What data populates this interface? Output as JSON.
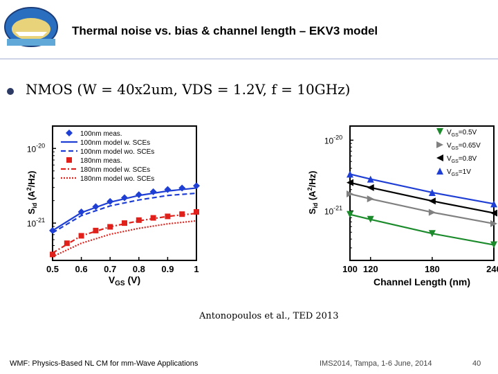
{
  "header": {
    "title": "Thermal noise vs. bias & channel length – EKV3 model",
    "logo_text": "IMS2014 - Tampa Bay, Florida"
  },
  "bullet": {
    "text": "NMOS (W = 40x2um, VDS = 1.2V, f = 10GHz)"
  },
  "citation": "Antonopoulos et al., TED 2013",
  "footer": {
    "left": "WMF: Physics-Based NL CM for mm-Wave Applications",
    "center": "IMS2014, Tampa, 1-6 June, 2014",
    "page": "40"
  },
  "colors": {
    "blue": "#1f3fd4",
    "red": "#e0201a",
    "green": "#1a8a2a",
    "gray": "#808080",
    "black": "#000000"
  },
  "chart_data": [
    {
      "type": "line",
      "xlabel": "VGS (V)",
      "ylabel": "Sid (A²/Hz)",
      "xlim": [
        0.5,
        1.0
      ],
      "ylim_log10": [
        -21.5,
        -19.7
      ],
      "log_y": true,
      "x_ticks": [
        "0.5",
        "0.6",
        "0.7",
        "0.8",
        "0.9",
        "1"
      ],
      "y_ticks": [
        "10^-20",
        "10^-21"
      ],
      "legend_position": "top",
      "series": [
        {
          "name": "100nm meas.",
          "style": "marker-diamond",
          "color": "blue",
          "x": [
            0.5,
            0.6,
            0.65,
            0.7,
            0.75,
            0.8,
            0.85,
            0.9,
            0.95,
            1.0
          ],
          "y_log10": [
            -21.1,
            -20.85,
            -20.78,
            -20.71,
            -20.66,
            -20.62,
            -20.58,
            -20.55,
            -20.53,
            -20.5
          ]
        },
        {
          "name": "100nm model w. SCEs",
          "style": "solid",
          "color": "blue",
          "x": [
            0.5,
            0.6,
            0.7,
            0.8,
            0.9,
            1.0
          ],
          "y_log10": [
            -21.1,
            -20.86,
            -20.72,
            -20.63,
            -20.57,
            -20.53
          ]
        },
        {
          "name": "100nm model wo. SCEs",
          "style": "dashed",
          "color": "blue",
          "x": [
            0.5,
            0.6,
            0.7,
            0.8,
            0.9,
            1.0
          ],
          "y_log10": [
            -21.13,
            -20.9,
            -20.77,
            -20.69,
            -20.63,
            -20.6
          ]
        },
        {
          "name": "180nm meas.",
          "style": "marker-square",
          "color": "red",
          "x": [
            0.5,
            0.55,
            0.6,
            0.65,
            0.7,
            0.75,
            0.8,
            0.85,
            0.9,
            0.95,
            1.0
          ],
          "y_log10": [
            -21.42,
            -21.27,
            -21.17,
            -21.1,
            -21.05,
            -21.0,
            -20.96,
            -20.93,
            -20.91,
            -20.88,
            -20.85
          ]
        },
        {
          "name": "180nm model w. SCEs",
          "style": "dash-dot",
          "color": "red",
          "x": [
            0.5,
            0.6,
            0.7,
            0.8,
            0.9,
            1.0
          ],
          "y_log10": [
            -21.4,
            -21.17,
            -21.05,
            -20.97,
            -20.91,
            -20.87
          ]
        },
        {
          "name": "180nm model wo. SCEs",
          "style": "dotted",
          "color": "red",
          "x": [
            0.5,
            0.6,
            0.7,
            0.8,
            0.9,
            1.0
          ],
          "y_log10": [
            -21.45,
            -21.27,
            -21.15,
            -21.07,
            -21.01,
            -20.97
          ]
        }
      ]
    },
    {
      "type": "line",
      "xlabel": "Channel Length (nm)",
      "ylabel": "Sid (A²/Hz)",
      "xlim": [
        100,
        240
      ],
      "ylim_log10": [
        -21.7,
        -19.8
      ],
      "log_y": true,
      "x_ticks": [
        "100",
        "120",
        "180",
        "240"
      ],
      "y_ticks": [
        "10^-20",
        "10^-21"
      ],
      "legend_position": "top-right",
      "series": [
        {
          "name": "VGS=0.5V",
          "marker": "triangle-down",
          "color": "green",
          "x": [
            100,
            120,
            180,
            240
          ],
          "y_log10": [
            -21.05,
            -21.12,
            -21.32,
            -21.48
          ]
        },
        {
          "name": "VGS=0.65V",
          "marker": "triangle-right",
          "color": "gray",
          "x": [
            100,
            120,
            180,
            240
          ],
          "y_log10": [
            -20.76,
            -20.83,
            -21.02,
            -21.18
          ]
        },
        {
          "name": "VGS=0.8V",
          "marker": "triangle-left",
          "color": "black",
          "x": [
            100,
            120,
            180,
            240
          ],
          "y_log10": [
            -20.6,
            -20.67,
            -20.86,
            -21.03
          ]
        },
        {
          "name": "VGS=1V",
          "marker": "triangle-up",
          "color": "blue",
          "x": [
            100,
            120,
            180,
            240
          ],
          "y_log10": [
            -20.48,
            -20.55,
            -20.74,
            -20.9
          ]
        }
      ]
    }
  ]
}
